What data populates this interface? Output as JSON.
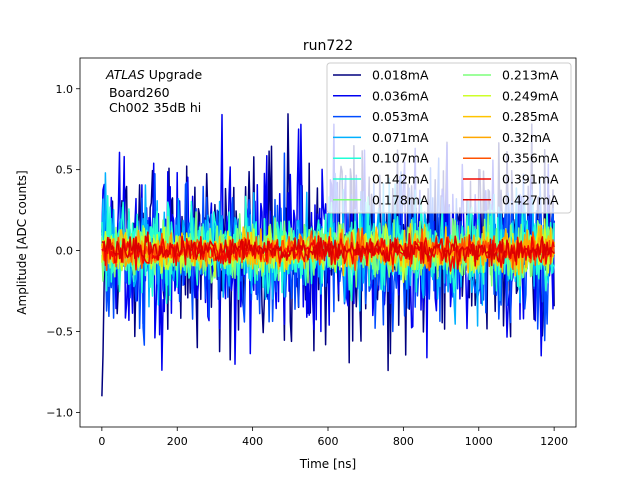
{
  "chart_data": {
    "type": "line",
    "title": "run722",
    "xlabel": "Time [ns]",
    "ylabel": "Amplitude [ADC counts]",
    "xlim": [
      -58,
      1258
    ],
    "ylim": [
      -1.09,
      1.19
    ],
    "xticks": [
      0,
      200,
      400,
      600,
      800,
      1000,
      1200
    ],
    "xtick_labels": [
      "0",
      "200",
      "400",
      "600",
      "800",
      "1000",
      "1200"
    ],
    "yticks": [
      -1.0,
      -0.5,
      0.0,
      0.5,
      1.0
    ],
    "ytick_labels": [
      "−1.0",
      "−0.5",
      "0.0",
      "0.5",
      "1.0"
    ],
    "grid": false,
    "legend_placement": "top-right",
    "legend_columns": 2,
    "annotation": {
      "italic": "ATLAS",
      "normal": " Upgrade",
      "line2": "Board260",
      "line3": "Ch002 35dB hi"
    },
    "x_range": [
      0,
      1200
    ],
    "x_step_ns": 3.125,
    "series": [
      {
        "name": "0.018mA",
        "color": "#00007f",
        "noise_sigma": 0.3
      },
      {
        "name": "0.036mA",
        "color": "#0000f1",
        "noise_sigma": 0.28
      },
      {
        "name": "0.053mA",
        "color": "#004cff",
        "noise_sigma": 0.21
      },
      {
        "name": "0.071mA",
        "color": "#00b0ff",
        "noise_sigma": 0.16
      },
      {
        "name": "0.107mA",
        "color": "#1fffd7",
        "noise_sigma": 0.12
      },
      {
        "name": "0.142mA",
        "color": "#29ffce",
        "noise_sigma": 0.1
      },
      {
        "name": "0.178mA",
        "color": "#7dff7a",
        "noise_sigma": 0.085
      },
      {
        "name": "0.213mA",
        "color": "#7dff7a",
        "noise_sigma": 0.075
      },
      {
        "name": "0.249mA",
        "color": "#ceff29",
        "noise_sigma": 0.065
      },
      {
        "name": "0.285mA",
        "color": "#ffc400",
        "noise_sigma": 0.058
      },
      {
        "name": "0.32mA",
        "color": "#ffa700",
        "noise_sigma": 0.052
      },
      {
        "name": "0.356mA",
        "color": "#ff5200",
        "noise_sigma": 0.046
      },
      {
        "name": "0.391mA",
        "color": "#f10800",
        "noise_sigma": 0.042
      },
      {
        "name": "0.427mA",
        "color": "#db0000",
        "noise_sigma": 0.038
      }
    ]
  }
}
